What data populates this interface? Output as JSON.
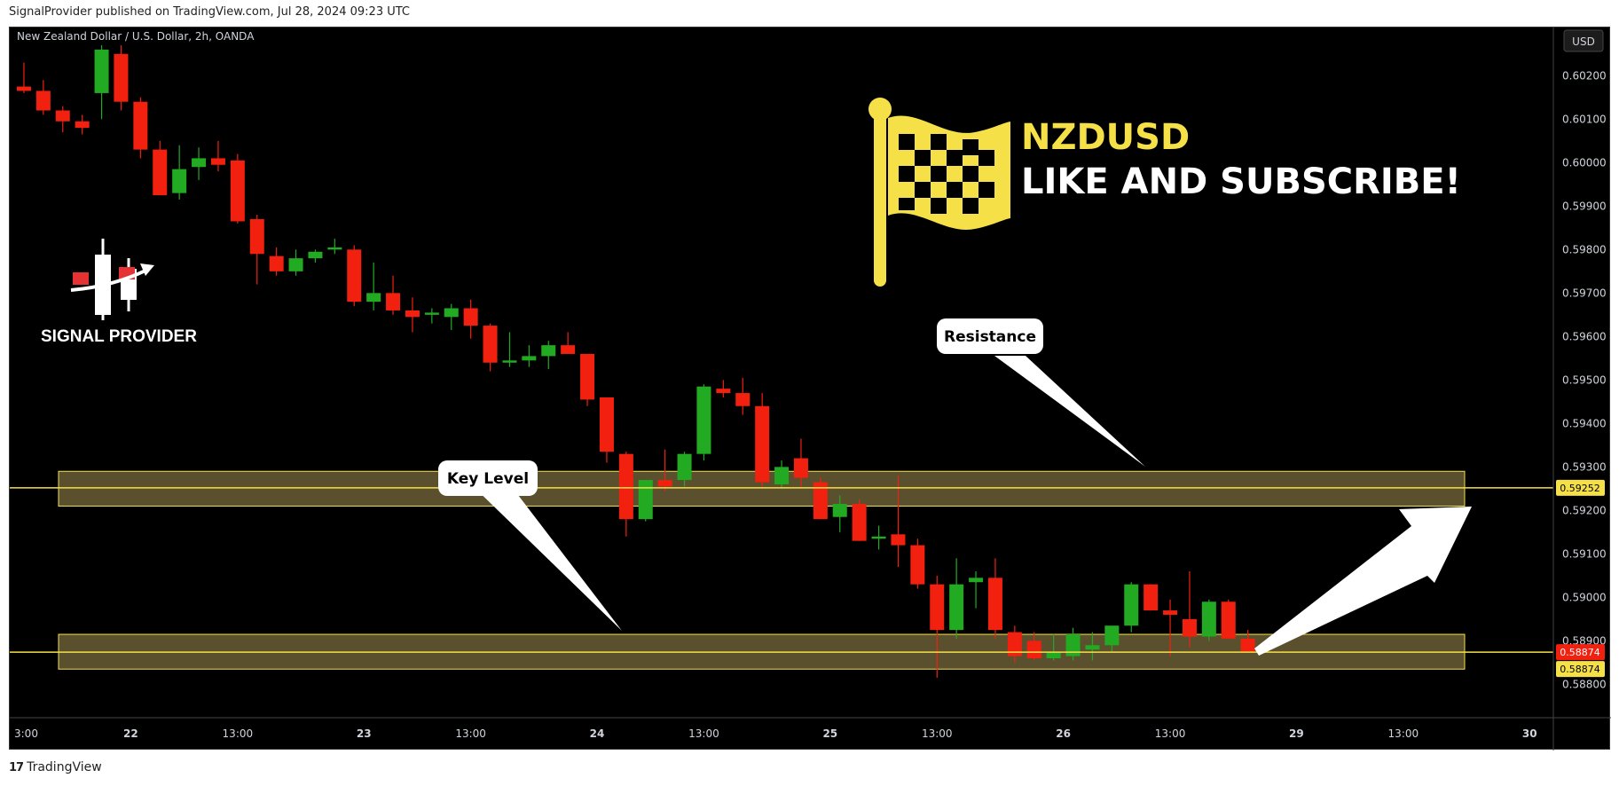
{
  "header": {
    "publisher_line": "SignalProvider published on TradingView.com, Jul 28, 2024 09:23 UTC"
  },
  "footer": {
    "brand": "TradingView",
    "logo_icon": "tradingview-logo-icon"
  },
  "colors": {
    "background": "#000000",
    "up_candle": "#22ab22",
    "down_candle": "#f2200f",
    "zone_fill": "#6b5e36",
    "zone_border": "#f5e048",
    "level_line": "#f5e048",
    "headline_yellow": "#f5e048",
    "last_price_tag": "#f2200f"
  },
  "chart_data": {
    "type": "candlestick",
    "title": "New Zealand Dollar / U.S. Dollar, 2h, OANDA",
    "currency": "USD",
    "y_ticks": [
      0.602,
      0.601,
      0.6,
      0.599,
      0.598,
      0.597,
      0.596,
      0.595,
      0.594,
      0.593,
      0.592,
      0.591,
      0.59,
      0.589,
      0.588
    ],
    "y_tick_labels": [
      "0.60200",
      "0.60100",
      "0.60000",
      "0.59900",
      "0.59800",
      "0.59700",
      "0.59600",
      "0.59500",
      "0.59400",
      "0.59300",
      "0.59200",
      "0.59100",
      "0.59000",
      "0.58900",
      "0.58800"
    ],
    "ylim": [
      0.5876,
      0.6027
    ],
    "x_ticks": [
      {
        "label": "3:00",
        "bold": false,
        "t": 0
      },
      {
        "label": "22",
        "bold": true,
        "t": 6
      },
      {
        "label": "13:00",
        "bold": false,
        "t": 11.5
      },
      {
        "label": "23",
        "bold": true,
        "t": 18
      },
      {
        "label": "13:00",
        "bold": false,
        "t": 23.5
      },
      {
        "label": "24",
        "bold": true,
        "t": 30
      },
      {
        "label": "13:00",
        "bold": false,
        "t": 35.5
      },
      {
        "label": "25",
        "bold": true,
        "t": 42
      },
      {
        "label": "13:00",
        "bold": false,
        "t": 47.5
      },
      {
        "label": "26",
        "bold": true,
        "t": 54
      },
      {
        "label": "13:00",
        "bold": false,
        "t": 59.5
      },
      {
        "label": "29",
        "bold": true,
        "t": 66
      },
      {
        "label": "13:00",
        "bold": false,
        "t": 71.5
      },
      {
        "label": "30",
        "bold": true,
        "t": 78
      }
    ],
    "candles": [
      {
        "o": 0.60175,
        "h": 0.6023,
        "l": 0.6016,
        "c": 0.60165
      },
      {
        "o": 0.60165,
        "h": 0.6019,
        "l": 0.6011,
        "c": 0.6012
      },
      {
        "o": 0.6012,
        "h": 0.6013,
        "l": 0.6007,
        "c": 0.60095
      },
      {
        "o": 0.60095,
        "h": 0.6011,
        "l": 0.60065,
        "c": 0.6008
      },
      {
        "o": 0.6016,
        "h": 0.6027,
        "l": 0.601,
        "c": 0.6026
      },
      {
        "o": 0.6025,
        "h": 0.6027,
        "l": 0.6012,
        "c": 0.6014
      },
      {
        "o": 0.6014,
        "h": 0.6015,
        "l": 0.6001,
        "c": 0.6003
      },
      {
        "o": 0.6003,
        "h": 0.6005,
        "l": 0.5994,
        "c": 0.59925
      },
      {
        "o": 0.5993,
        "h": 0.6004,
        "l": 0.59915,
        "c": 0.59985
      },
      {
        "o": 0.5999,
        "h": 0.60035,
        "l": 0.5996,
        "c": 0.6001
      },
      {
        "o": 0.6001,
        "h": 0.6005,
        "l": 0.5998,
        "c": 0.59995
      },
      {
        "o": 0.60005,
        "h": 0.6002,
        "l": 0.5986,
        "c": 0.59865
      },
      {
        "o": 0.5987,
        "h": 0.5988,
        "l": 0.5972,
        "c": 0.5979
      },
      {
        "o": 0.59785,
        "h": 0.59805,
        "l": 0.5974,
        "c": 0.5975
      },
      {
        "o": 0.5975,
        "h": 0.598,
        "l": 0.5974,
        "c": 0.5978
      },
      {
        "o": 0.5978,
        "h": 0.598,
        "l": 0.5977,
        "c": 0.59795
      },
      {
        "o": 0.598,
        "h": 0.59825,
        "l": 0.5979,
        "c": 0.59805
      },
      {
        "o": 0.598,
        "h": 0.5981,
        "l": 0.5967,
        "c": 0.5968
      },
      {
        "o": 0.5968,
        "h": 0.5977,
        "l": 0.5966,
        "c": 0.597
      },
      {
        "o": 0.597,
        "h": 0.5974,
        "l": 0.5965,
        "c": 0.5966
      },
      {
        "o": 0.5966,
        "h": 0.5969,
        "l": 0.5961,
        "c": 0.59645
      },
      {
        "o": 0.5965,
        "h": 0.59665,
        "l": 0.5963,
        "c": 0.59655
      },
      {
        "o": 0.59645,
        "h": 0.59675,
        "l": 0.59615,
        "c": 0.59665
      },
      {
        "o": 0.59665,
        "h": 0.59685,
        "l": 0.59595,
        "c": 0.59625
      },
      {
        "o": 0.59625,
        "h": 0.5963,
        "l": 0.5952,
        "c": 0.5954
      },
      {
        "o": 0.5954,
        "h": 0.5961,
        "l": 0.5953,
        "c": 0.59545
      },
      {
        "o": 0.59545,
        "h": 0.5958,
        "l": 0.5953,
        "c": 0.59555
      },
      {
        "o": 0.59555,
        "h": 0.5959,
        "l": 0.59525,
        "c": 0.5958
      },
      {
        "o": 0.5958,
        "h": 0.5961,
        "l": 0.5956,
        "c": 0.5956
      },
      {
        "o": 0.5956,
        "h": 0.5956,
        "l": 0.5944,
        "c": 0.59455
      },
      {
        "o": 0.5946,
        "h": 0.5946,
        "l": 0.5931,
        "c": 0.59335
      },
      {
        "o": 0.5933,
        "h": 0.59335,
        "l": 0.5914,
        "c": 0.5918
      },
      {
        "o": 0.5918,
        "h": 0.5927,
        "l": 0.59175,
        "c": 0.5927
      },
      {
        "o": 0.5927,
        "h": 0.5934,
        "l": 0.59245,
        "c": 0.59255
      },
      {
        "o": 0.5927,
        "h": 0.59335,
        "l": 0.59255,
        "c": 0.5933
      },
      {
        "o": 0.5933,
        "h": 0.5949,
        "l": 0.59315,
        "c": 0.59485
      },
      {
        "o": 0.5948,
        "h": 0.595,
        "l": 0.5946,
        "c": 0.5947
      },
      {
        "o": 0.5947,
        "h": 0.59505,
        "l": 0.5942,
        "c": 0.5944
      },
      {
        "o": 0.5944,
        "h": 0.5947,
        "l": 0.59255,
        "c": 0.59265
      },
      {
        "o": 0.5926,
        "h": 0.59315,
        "l": 0.5925,
        "c": 0.593
      },
      {
        "o": 0.5932,
        "h": 0.59365,
        "l": 0.59255,
        "c": 0.59275
      },
      {
        "o": 0.59265,
        "h": 0.59275,
        "l": 0.5918,
        "c": 0.5918
      },
      {
        "o": 0.59185,
        "h": 0.59235,
        "l": 0.5915,
        "c": 0.59215
      },
      {
        "o": 0.59215,
        "h": 0.59225,
        "l": 0.5913,
        "c": 0.5913
      },
      {
        "o": 0.59135,
        "h": 0.59165,
        "l": 0.5911,
        "c": 0.5914
      },
      {
        "o": 0.59145,
        "h": 0.5928,
        "l": 0.5907,
        "c": 0.5912
      },
      {
        "o": 0.5912,
        "h": 0.59135,
        "l": 0.5902,
        "c": 0.5903
      },
      {
        "o": 0.5903,
        "h": 0.5905,
        "l": 0.58815,
        "c": 0.58925
      },
      {
        "o": 0.58925,
        "h": 0.5909,
        "l": 0.58905,
        "c": 0.5903
      },
      {
        "o": 0.59035,
        "h": 0.5906,
        "l": 0.58975,
        "c": 0.59045
      },
      {
        "o": 0.59045,
        "h": 0.5909,
        "l": 0.58905,
        "c": 0.58925
      },
      {
        "o": 0.5892,
        "h": 0.58935,
        "l": 0.5885,
        "c": 0.58865
      },
      {
        "o": 0.589,
        "h": 0.5892,
        "l": 0.58855,
        "c": 0.5886
      },
      {
        "o": 0.5886,
        "h": 0.58915,
        "l": 0.58855,
        "c": 0.58875
      },
      {
        "o": 0.58865,
        "h": 0.5893,
        "l": 0.58855,
        "c": 0.58915
      },
      {
        "o": 0.5888,
        "h": 0.5892,
        "l": 0.58855,
        "c": 0.5889
      },
      {
        "o": 0.5889,
        "h": 0.5893,
        "l": 0.58875,
        "c": 0.58935
      },
      {
        "o": 0.58935,
        "h": 0.59035,
        "l": 0.5892,
        "c": 0.5903
      },
      {
        "o": 0.5903,
        "h": 0.5903,
        "l": 0.5897,
        "c": 0.5897
      },
      {
        "o": 0.5897,
        "h": 0.58995,
        "l": 0.58865,
        "c": 0.5896
      },
      {
        "o": 0.5895,
        "h": 0.5906,
        "l": 0.58885,
        "c": 0.5891
      },
      {
        "o": 0.5891,
        "h": 0.58995,
        "l": 0.589,
        "c": 0.5899
      },
      {
        "o": 0.5899,
        "h": 0.58995,
        "l": 0.58905,
        "c": 0.58905
      },
      {
        "o": 0.58905,
        "h": 0.58925,
        "l": 0.58874,
        "c": 0.58874
      }
    ],
    "zones": [
      {
        "name": "Resistance",
        "top": 0.5929,
        "bottom": 0.5921,
        "line": 0.59252
      },
      {
        "name": "Key Level",
        "top": 0.58915,
        "bottom": 0.58835,
        "line": 0.58874
      }
    ],
    "price_tags": [
      {
        "label": "0.59252",
        "value": 0.59252,
        "kind": "level"
      },
      {
        "label": "0.58874",
        "value": 0.58874,
        "kind": "last"
      },
      {
        "label": "0.58874",
        "value": 0.58874,
        "kind": "level"
      }
    ],
    "annotations": [
      {
        "text": "Resistance"
      },
      {
        "text": "Key Level"
      }
    ],
    "overlay": {
      "headline_pair": "NZDUSD",
      "headline_cta": "LIKE AND SUBSCRIBE!",
      "flag_icon": "checkered-flag-icon",
      "brand_text": "SIGNAL PROVIDER",
      "brand_icon": "signal-provider-logo-icon"
    }
  }
}
